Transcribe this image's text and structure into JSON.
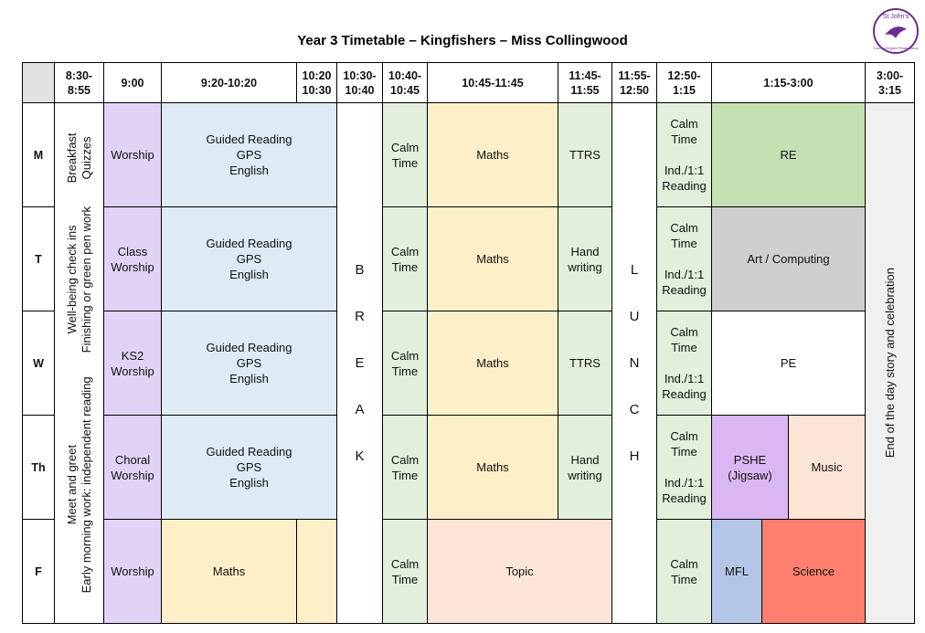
{
  "header": {
    "title": "Year 3 Timetable – Kingfishers – Miss Collingwood",
    "logo": "St John's",
    "logo_sub": "Church of England Primary School"
  },
  "table": {
    "headers": [
      "8:30-\n8:55",
      "9:00",
      "9:20-10:20",
      "10:20\n10:30",
      "10:30-\n10:40",
      "10:40-\n10:45",
      "10:45-11:45",
      "11:45-\n11:55",
      "11:55-\n12:50",
      "12:50-\n1:15",
      "1:15-3:00",
      "3:00-\n3:15"
    ],
    "days": [
      "M",
      "T",
      "W",
      "Th",
      "F"
    ],
    "early_morning": [
      {
        "top": "Meet and greet",
        "bottom": "Early morning work: independent reading"
      },
      {
        "top": "Well-being check ins",
        "bottom": "Finishing or green pen work"
      },
      {
        "top": "Breakfast",
        "bottom": "Quizzes"
      }
    ],
    "cells": [
      "Worship",
      "Class\nWorship",
      "KS2\nWorship",
      "Choral\nWorship",
      "Worship",
      "Guided Reading\nGPS\nEnglish",
      "Guided Reading\nGPS\nEnglish",
      "Guided Reading\nGPS\nEnglish",
      "Guided Reading\nGPS\nEnglish",
      "Maths",
      "BREAK",
      "Calm\nTime",
      "Calm\nTime",
      "Calm\nTime",
      "Calm\nTime",
      "Calm\nTime",
      "Maths",
      "Maths",
      "Maths",
      "Maths",
      "TTRS",
      "Hand\nwriting",
      "TTRS",
      "Hand\nwriting",
      "Topic",
      "LUNCH",
      "Calm\nTime\n\nInd./1:1\nReading",
      "Calm\nTime\n\nInd./1:1\nReading",
      "Calm\nTime\n\nInd./1:1\nReading",
      "Calm\nTime\n\nInd./1:1\nReading",
      "Calm\nTime",
      "RE",
      "Art / Computing",
      "PE",
      "PSHE\n(Jigsaw)",
      "Music",
      "MFL",
      "Science",
      "End of the day story and celebration"
    ]
  }
}
